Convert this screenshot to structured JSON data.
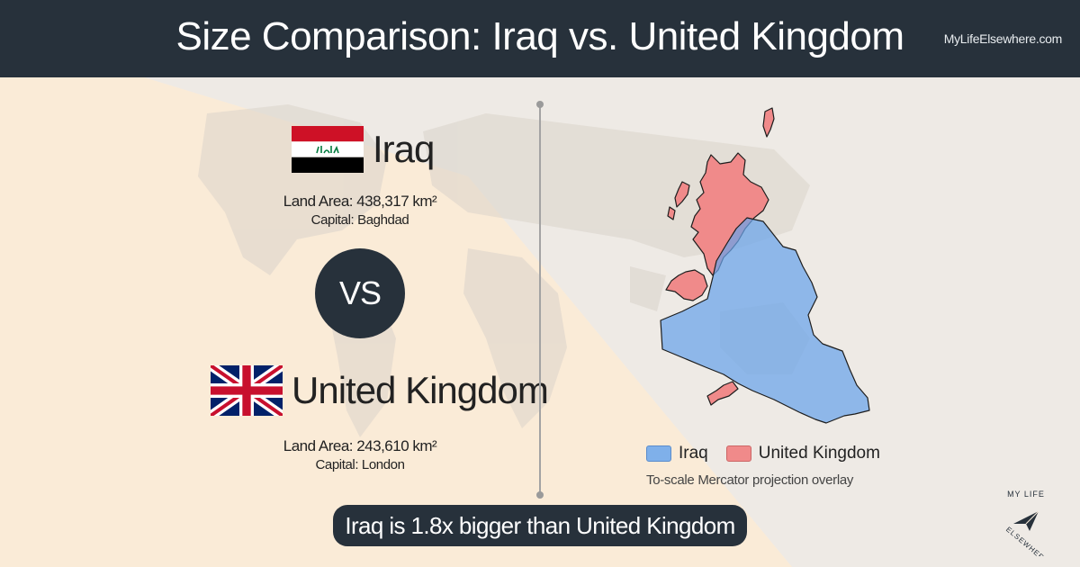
{
  "header": {
    "title": "Size Comparison: Iraq vs. United Kingdom",
    "site": "MyLifeElsewhere.com"
  },
  "country_a": {
    "name": "Iraq",
    "flag_icon": "iraq-flag-icon",
    "land_area": "Land Area: 438,317 km²",
    "capital": "Capital: Baghdad"
  },
  "vs_label": "VS",
  "country_b": {
    "name": "United Kingdom",
    "flag_icon": "united-kingdom-flag-icon",
    "land_area": "Land Area: 243,610 km²",
    "capital": "Capital: London"
  },
  "legend": {
    "items": [
      {
        "label": "Iraq",
        "color": "#7fb0ea"
      },
      {
        "label": "United Kingdom",
        "color": "#f08a8a"
      }
    ],
    "note": "To-scale Mercator projection overlay"
  },
  "banner": "Iraq is 1.8x bigger than United Kingdom",
  "logo": {
    "text": "MY LIFE ELSEWHERE"
  },
  "colors": {
    "header_bg": "#27313b",
    "page_bg": "#fbeedd",
    "iraq_fill": "#7fb0ea",
    "uk_fill": "#f08a8a"
  }
}
